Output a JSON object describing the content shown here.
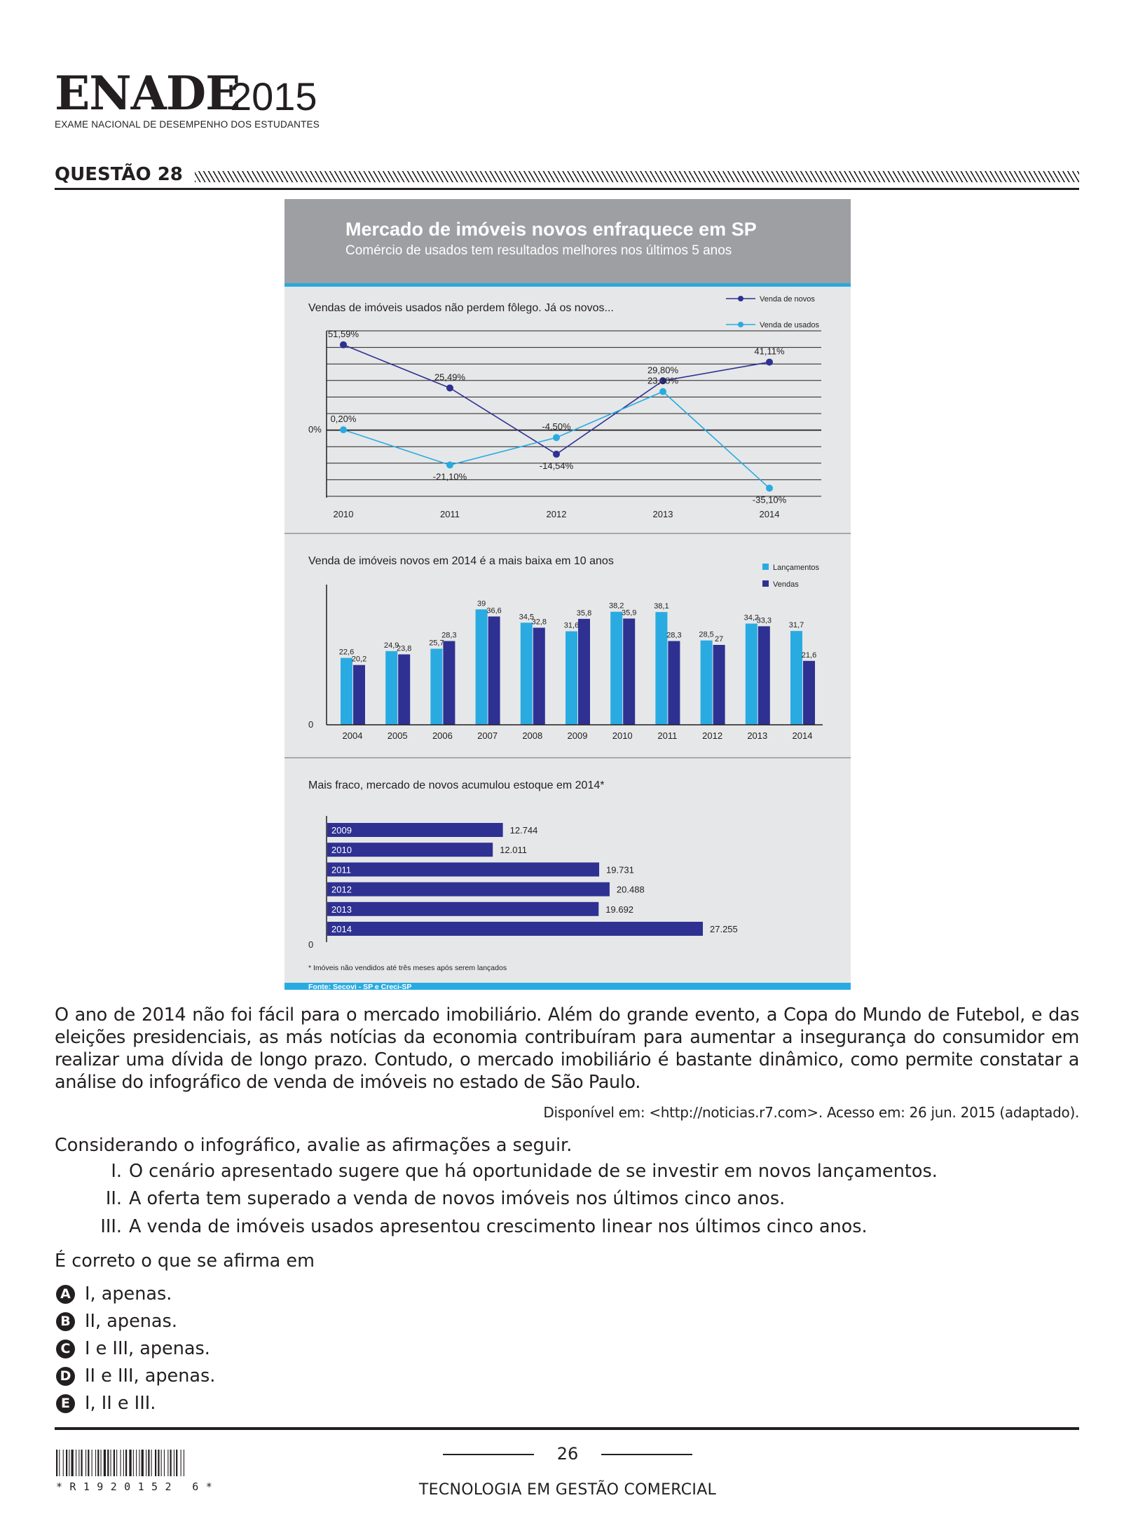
{
  "header": {
    "logo_word": "ENADE",
    "logo_year": "2015",
    "logo_subtitle": "EXAME NACIONAL DE DESEMPENHO DOS ESTUDANTES",
    "question_title": "QUESTÃO 28"
  },
  "infographic": {
    "title": "Mercado de imóveis novos enfraquece em SP",
    "subtitle": "Comércio de usados tem resultados melhores nos últimos 5 anos",
    "source": "Fonte: Secovi - SP e Creci-SP",
    "colors": {
      "header_bg": "#9d9fa2",
      "accent_line": "#2aa8e0",
      "panel_bg": "#e6e7e8",
      "novos": "#2e3192",
      "usados": "#29abe2"
    }
  },
  "chart_data": [
    {
      "type": "line",
      "title": "Vendas de imóveis usados não perdem fôlego. Já os novos...",
      "x": [
        "2010",
        "2011",
        "2012",
        "2013",
        "2014"
      ],
      "zero_label": "0%",
      "series": [
        {
          "name": "Venda de novos",
          "values": [
            51.59,
            25.49,
            -14.54,
            29.8,
            41.11
          ],
          "labels": [
            "51,59%",
            "25,49%",
            "-14,54%",
            "29,80%",
            "41,11%"
          ]
        },
        {
          "name": "Venda de usados",
          "values": [
            0.2,
            -21.1,
            -4.5,
            23.3,
            -35.1
          ],
          "labels": [
            "0,20%",
            "-21,10%",
            "-4,50%",
            "23,30%",
            "-35,10%"
          ]
        }
      ],
      "ylim": [
        -40,
        60
      ],
      "grid": true,
      "legend": "top-right"
    },
    {
      "type": "bar",
      "title": "Venda de imóveis novos em 2014 é a mais baixa em 10 anos",
      "categories": [
        "2004",
        "2005",
        "2006",
        "2007",
        "2008",
        "2009",
        "2010",
        "2011",
        "2012",
        "2013",
        "2014"
      ],
      "zero_label": "0",
      "series": [
        {
          "name": "Lançamentos",
          "values": [
            22.6,
            24.9,
            25.7,
            39,
            34.5,
            31.6,
            38.2,
            38.1,
            28.5,
            34.2,
            31.7
          ],
          "labels": [
            "22,6",
            "24,9",
            "25,7",
            "39",
            "34,5",
            "31,6",
            "38,2",
            "38,1",
            "28,5",
            "34,2",
            "31,7"
          ]
        },
        {
          "name": "Vendas",
          "values": [
            20.2,
            23.8,
            28.3,
            36.6,
            32.8,
            35.8,
            35.9,
            28.3,
            27,
            33.3,
            21.6
          ],
          "labels": [
            "20,2",
            "23,8",
            "28,3",
            "36,6",
            "32,8",
            "35,8",
            "35,9",
            "28,3",
            "27",
            "33,3",
            "21,6"
          ]
        }
      ],
      "ylim": [
        0,
        45
      ],
      "legend": "top-right"
    },
    {
      "type": "bar",
      "orientation": "horizontal",
      "title": "Mais fraco, mercado de novos acumulou estoque em 2014*",
      "categories": [
        "2009",
        "2010",
        "2011",
        "2012",
        "2013",
        "2014"
      ],
      "values": [
        12744,
        12011,
        19731,
        20488,
        19692,
        27255
      ],
      "labels": [
        "12.744",
        "12.011",
        "19.731",
        "20.488",
        "19.692",
        "27.255"
      ],
      "zero_label": "0",
      "footnote": "* Imóveis não vendidos até três meses após serem lançados",
      "xlim": [
        0,
        30000
      ]
    }
  ],
  "passage": "O ano de 2014 não foi fácil para o mercado imobiliário. Além do grande evento, a Copa do Mundo de Futebol, e das eleições presidenciais, as más notícias da economia contribuíram para aumentar a insegurança do consumidor em realizar uma dívida de longo prazo. Contudo, o mercado imobiliário é bastante dinâmico, como permite constatar a análise do infográfico de venda de imóveis no estado de São Paulo.",
  "passage_source": "Disponível em: <http://noticias.r7.com>. Acesso em: 26 jun. 2015 (adaptado).",
  "prompt": "Considerando o infográfico, avalie as afirmações a seguir.",
  "statements": [
    {
      "num": "I.",
      "text": "O cenário apresentado sugere que há oportunidade de se investir em novos lançamentos."
    },
    {
      "num": "II.",
      "text": "A oferta tem superado a venda de novos imóveis nos últimos cinco anos."
    },
    {
      "num": "III.",
      "text": "A venda de imóveis usados apresentou crescimento linear nos últimos cinco anos."
    }
  ],
  "answer_lead": "É correto o que se afirma em",
  "options": [
    {
      "letter": "A",
      "text": "I, apenas."
    },
    {
      "letter": "B",
      "text": "II, apenas."
    },
    {
      "letter": "C",
      "text": "I e III, apenas."
    },
    {
      "letter": "D",
      "text": "II e III, apenas."
    },
    {
      "letter": "E",
      "text": "I, II e III."
    }
  ],
  "footer": {
    "page_number": "26",
    "course": "TECNOLOGIA EM GESTÃO COMERCIAL",
    "barcode_text": "*R1920152 6*"
  }
}
